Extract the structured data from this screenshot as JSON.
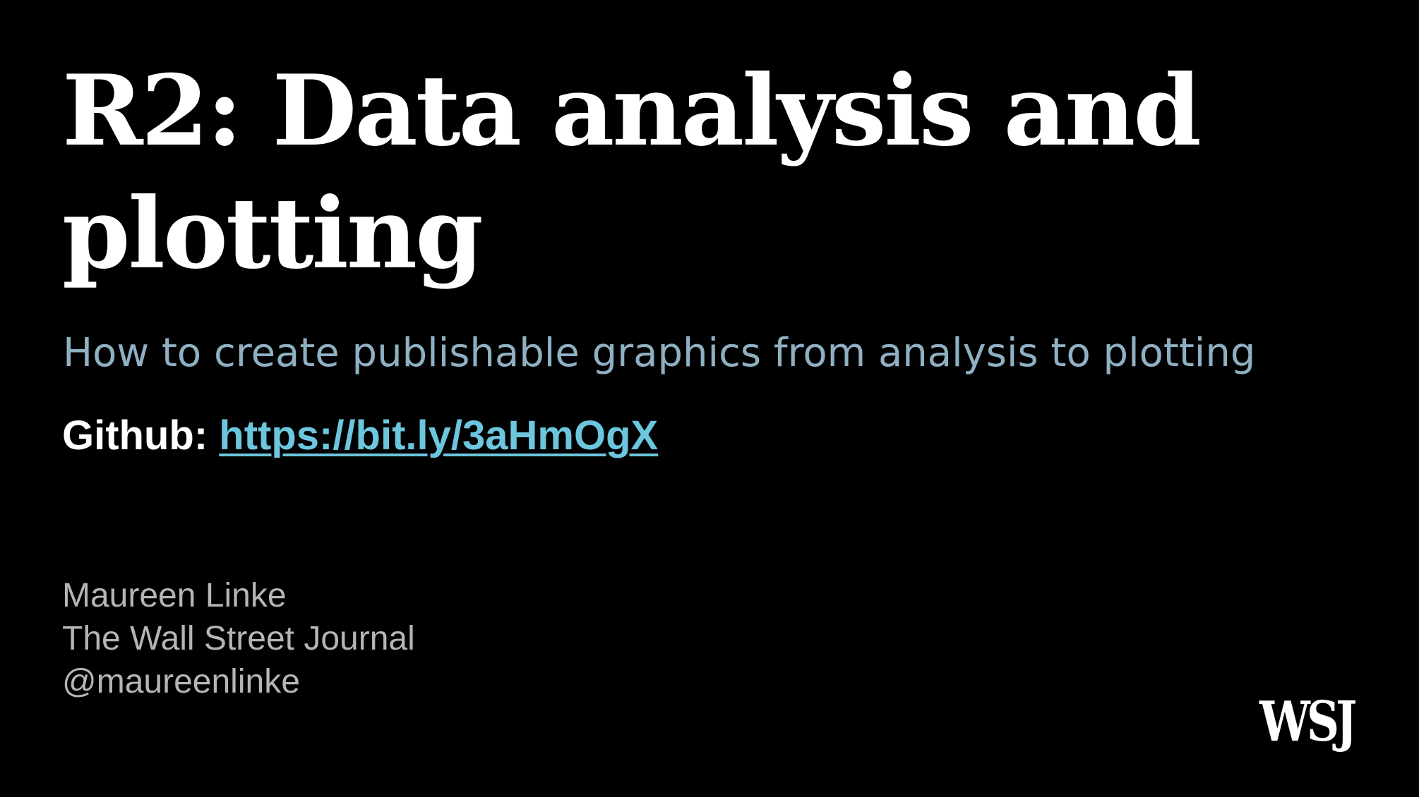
{
  "slide": {
    "title": "R2: Data analysis and plotting",
    "subtitle": "How to create publishable graphics from analysis to plotting",
    "github": {
      "label": "Github: ",
      "link_text": "https://bit.ly/3aHmOgX"
    },
    "author": {
      "name": "Maureen Linke",
      "organization": "The Wall Street Journal",
      "handle": "@maureenlinke"
    },
    "logo_text": "WSJ"
  },
  "colors": {
    "background": "#000000",
    "title": "#ffffff",
    "subtitle": "#8fb0c2",
    "link": "#6cc6de",
    "author": "#b5b5b5"
  }
}
